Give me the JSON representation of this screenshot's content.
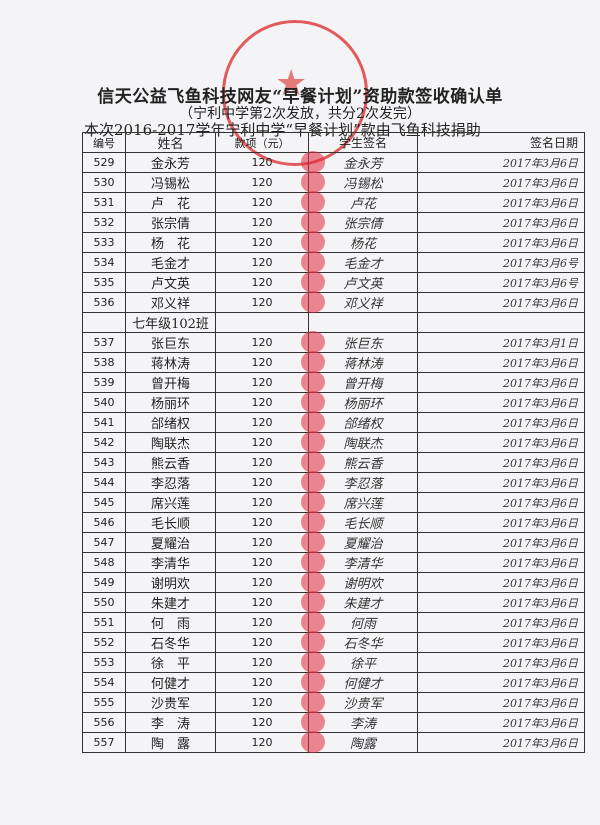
{
  "title": "信天公益飞鱼科技网友“早餐计划”资助款签收确认单",
  "subtitle": "（宁利中学第2次发放，共分2次发完）",
  "note": "本次2016-2017学年宁利中学“早餐计划”款由飞鱼科技捐助",
  "headers": [
    "编号",
    "姓名",
    "款项（元）",
    "学生签名",
    "签名日期"
  ],
  "rows": [
    {
      "no": "529",
      "name": "金永芳",
      "amount": "120",
      "sig": "金永芳",
      "date": "2017年3月6日"
    },
    {
      "no": "530",
      "name": "冯锡松",
      "amount": "120",
      "sig": "冯锡松",
      "date": "2017年3月6日"
    },
    {
      "no": "531",
      "name": "卢　花",
      "amount": "120",
      "sig": "卢花",
      "date": "2017年3月6日"
    },
    {
      "no": "532",
      "name": "张宗倩",
      "amount": "120",
      "sig": "张宗倩",
      "date": "2017年3月6日"
    },
    {
      "no": "533",
      "name": "杨　花",
      "amount": "120",
      "sig": "杨花",
      "date": "2017年3月6日"
    },
    {
      "no": "534",
      "name": "毛金才",
      "amount": "120",
      "sig": "毛金才",
      "date": "2017年3月6号"
    },
    {
      "no": "535",
      "name": "卢文英",
      "amount": "120",
      "sig": "卢文英",
      "date": "2017年3月6号"
    },
    {
      "no": "536",
      "name": "邓义祥",
      "amount": "120",
      "sig": "邓义祥",
      "date": "2017年3月6日"
    },
    {
      "no": "",
      "name": "七年级102班",
      "amount": "",
      "sig": "",
      "date": ""
    },
    {
      "no": "537",
      "name": "张巨东",
      "amount": "120",
      "sig": "张巨东",
      "date": "2017年3月1日"
    },
    {
      "no": "538",
      "name": "蒋林涛",
      "amount": "120",
      "sig": "蒋林涛",
      "date": "2017年3月6日"
    },
    {
      "no": "539",
      "name": "曾开梅",
      "amount": "120",
      "sig": "曾开梅",
      "date": "2017年3月6日"
    },
    {
      "no": "540",
      "name": "杨丽环",
      "amount": "120",
      "sig": "杨丽环",
      "date": "2017年3月6日"
    },
    {
      "no": "541",
      "name": "郃绪权",
      "amount": "120",
      "sig": "郃绪权",
      "date": "2017年3月6日"
    },
    {
      "no": "542",
      "name": "陶联杰",
      "amount": "120",
      "sig": "陶联杰",
      "date": "2017年3月6日"
    },
    {
      "no": "543",
      "name": "熊云香",
      "amount": "120",
      "sig": "熊云香",
      "date": "2017年3月6日"
    },
    {
      "no": "544",
      "name": "李忍落",
      "amount": "120",
      "sig": "李忍落",
      "date": "2017年3月6日"
    },
    {
      "no": "545",
      "name": "席兴莲",
      "amount": "120",
      "sig": "席兴莲",
      "date": "2017年3月6日"
    },
    {
      "no": "546",
      "name": "毛长顺",
      "amount": "120",
      "sig": "毛长顺",
      "date": "2017年3月6日"
    },
    {
      "no": "547",
      "name": "夏耀治",
      "amount": "120",
      "sig": "夏耀治",
      "date": "2017年3月6日"
    },
    {
      "no": "548",
      "name": "李清华",
      "amount": "120",
      "sig": "李清华",
      "date": "2017年3月6日"
    },
    {
      "no": "549",
      "name": "谢明欢",
      "amount": "120",
      "sig": "谢明欢",
      "date": "2017年3月6日"
    },
    {
      "no": "550",
      "name": "朱建才",
      "amount": "120",
      "sig": "朱建才",
      "date": "2017年3月6日"
    },
    {
      "no": "551",
      "name": "何　雨",
      "amount": "120",
      "sig": "何雨",
      "date": "2017年3月6日"
    },
    {
      "no": "552",
      "name": "石冬华",
      "amount": "120",
      "sig": "石冬华",
      "date": "2017年3月6日"
    },
    {
      "no": "553",
      "name": "徐　平",
      "amount": "120",
      "sig": "徐平",
      "date": "2017年3月6日"
    },
    {
      "no": "554",
      "name": "何健才",
      "amount": "120",
      "sig": "何健才",
      "date": "2017年3月6日"
    },
    {
      "no": "555",
      "name": "沙贵军",
      "amount": "120",
      "sig": "沙贵军",
      "date": "2017年3月6日"
    },
    {
      "no": "556",
      "name": "李　涛",
      "amount": "120",
      "sig": "李涛",
      "date": "2017年3月6日"
    },
    {
      "no": "557",
      "name": "陶　露",
      "amount": "120",
      "sig": "陶露",
      "date": "2017年3月6日"
    }
  ],
  "colors": {
    "stamp": "#dc2828",
    "fingerprint": "#e1283c"
  }
}
